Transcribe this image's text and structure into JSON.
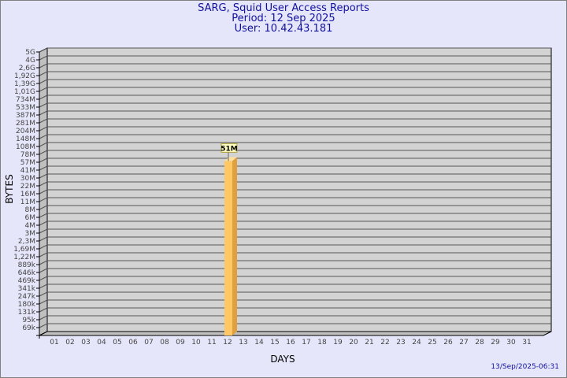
{
  "chart_data": {
    "type": "bar",
    "title": "SARG, Squid User Access Reports",
    "subtitle_period": "Period: 12 Sep 2025",
    "subtitle_user": "User: 10.42.43.181",
    "xlabel": "DAYS",
    "ylabel": "BYTES",
    "y_scale": "log",
    "y_ticks": [
      "5G",
      "4G",
      "2,6G",
      "1,92G",
      "1,39G",
      "1,01G",
      "734M",
      "533M",
      "387M",
      "281M",
      "204M",
      "148M",
      "108M",
      "78M",
      "57M",
      "41M",
      "30M",
      "22M",
      "16M",
      "11M",
      "8M",
      "6M",
      "4M",
      "3M",
      "2,3M",
      "1,69M",
      "1,22M",
      "889k",
      "646k",
      "469k",
      "341k",
      "247k",
      "180k",
      "131k",
      "95k",
      "69k"
    ],
    "categories": [
      "01",
      "02",
      "03",
      "04",
      "05",
      "06",
      "07",
      "08",
      "09",
      "10",
      "11",
      "12",
      "13",
      "14",
      "15",
      "16",
      "17",
      "18",
      "19",
      "20",
      "21",
      "22",
      "23",
      "24",
      "25",
      "26",
      "27",
      "28",
      "29",
      "30",
      "31"
    ],
    "values": [
      null,
      null,
      null,
      null,
      null,
      null,
      null,
      null,
      null,
      null,
      null,
      51000000,
      null,
      null,
      null,
      null,
      null,
      null,
      null,
      null,
      null,
      null,
      null,
      null,
      null,
      null,
      null,
      null,
      null,
      null,
      null
    ],
    "data_labels": {
      "12": "51M"
    },
    "grid": true,
    "colors": {
      "background": "#e6e6fa",
      "plot": "#d3d3d3",
      "bar_front": "#ffc864",
      "bar_side": "#e0a040",
      "title": "#1010a0"
    }
  },
  "footer": {
    "timestamp": "13/Sep/2025-06:31"
  }
}
